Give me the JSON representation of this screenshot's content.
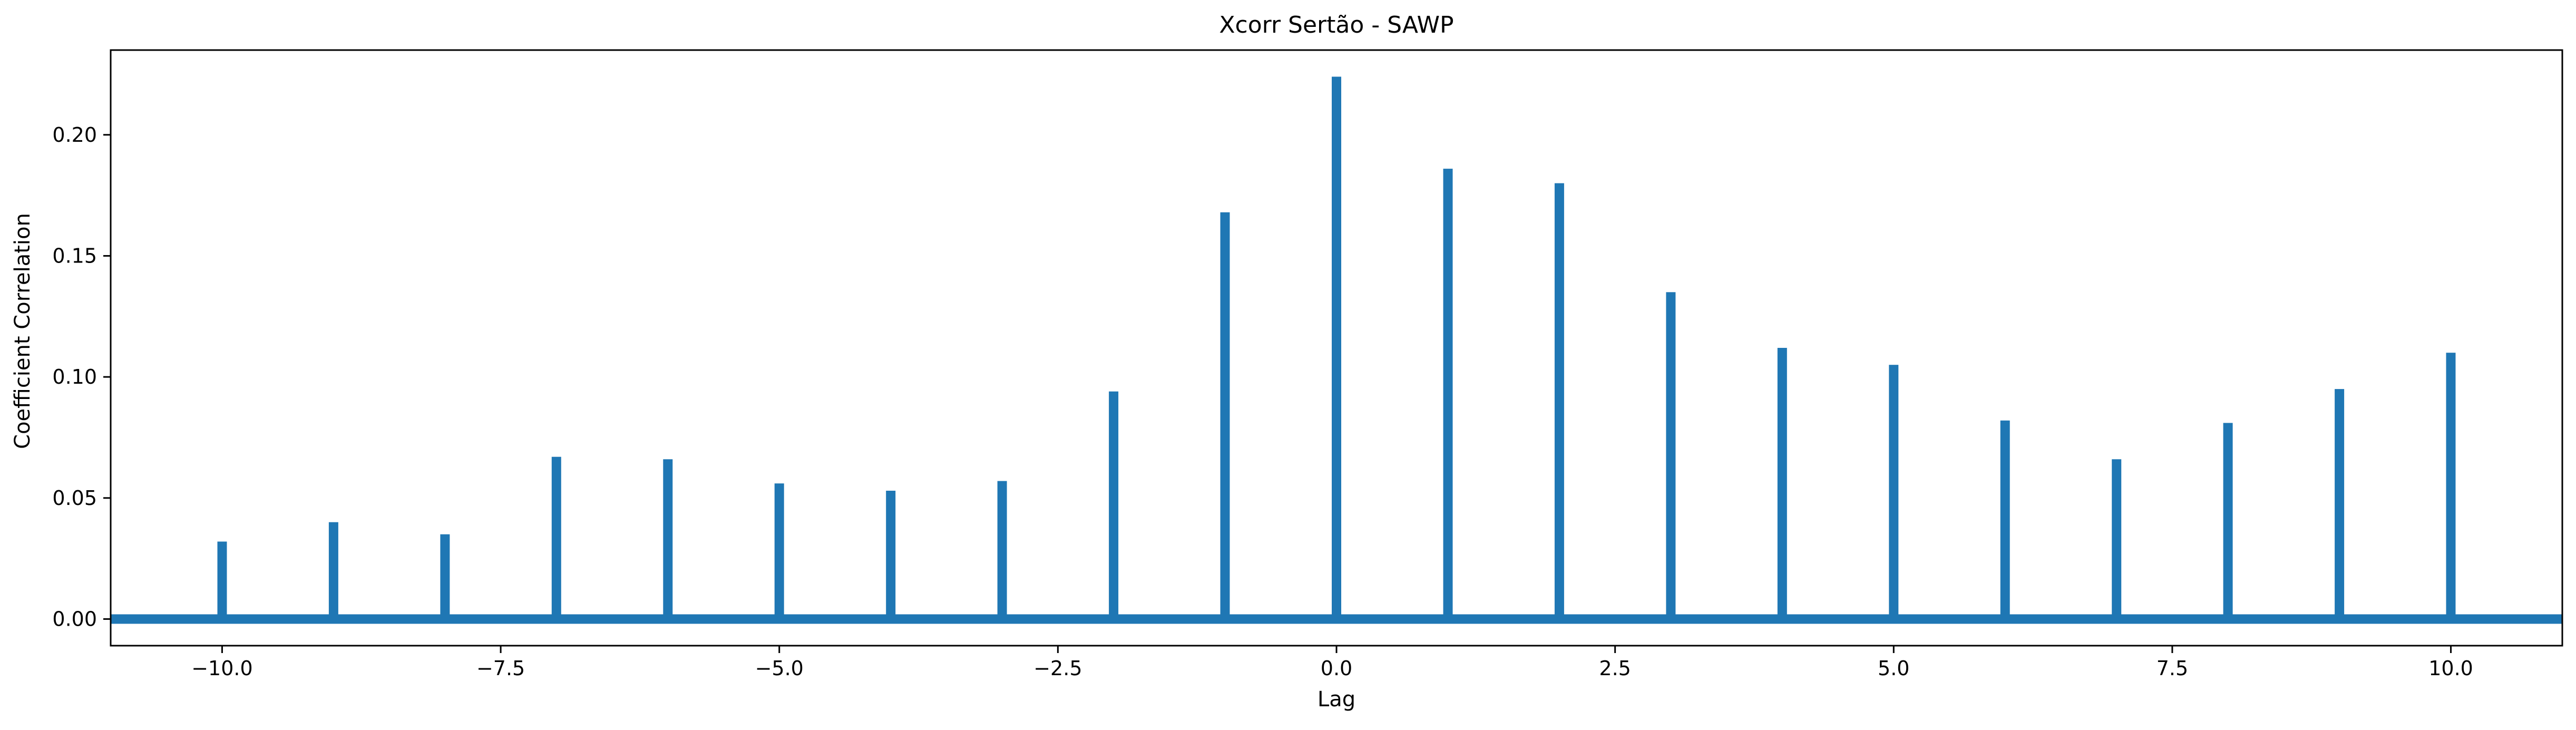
{
  "chart_data": {
    "type": "bar",
    "title": "Xcorr Sertão - SAWP",
    "xlabel": "Lag",
    "ylabel": "Coefficient Correlation",
    "xlim": [
      -11,
      11
    ],
    "ylim": [
      -0.011,
      0.235
    ],
    "grid": false,
    "legend": null,
    "series_color": "#1f77b4",
    "x_ticks": [
      -10.0,
      -7.5,
      -5.0,
      -2.5,
      0.0,
      2.5,
      5.0,
      7.5,
      10.0
    ],
    "x_tick_labels": [
      "−10.0",
      "−7.5",
      "−5.0",
      "−2.5",
      "0.0",
      "2.5",
      "5.0",
      "7.5",
      "10.0"
    ],
    "y_ticks": [
      0.0,
      0.05,
      0.1,
      0.15,
      0.2
    ],
    "y_tick_labels": [
      "0.00",
      "0.05",
      "0.10",
      "0.15",
      "0.20"
    ],
    "x": [
      -10,
      -9,
      -8,
      -7,
      -6,
      -5,
      -4,
      -3,
      -2,
      -1,
      0,
      1,
      2,
      3,
      4,
      5,
      6,
      7,
      8,
      9,
      10
    ],
    "values": [
      0.032,
      0.04,
      0.035,
      0.067,
      0.066,
      0.056,
      0.053,
      0.057,
      0.094,
      0.168,
      0.224,
      0.186,
      0.18,
      0.135,
      0.112,
      0.105,
      0.082,
      0.066,
      0.081,
      0.095,
      0.11
    ],
    "baseline_y": 0.0
  }
}
